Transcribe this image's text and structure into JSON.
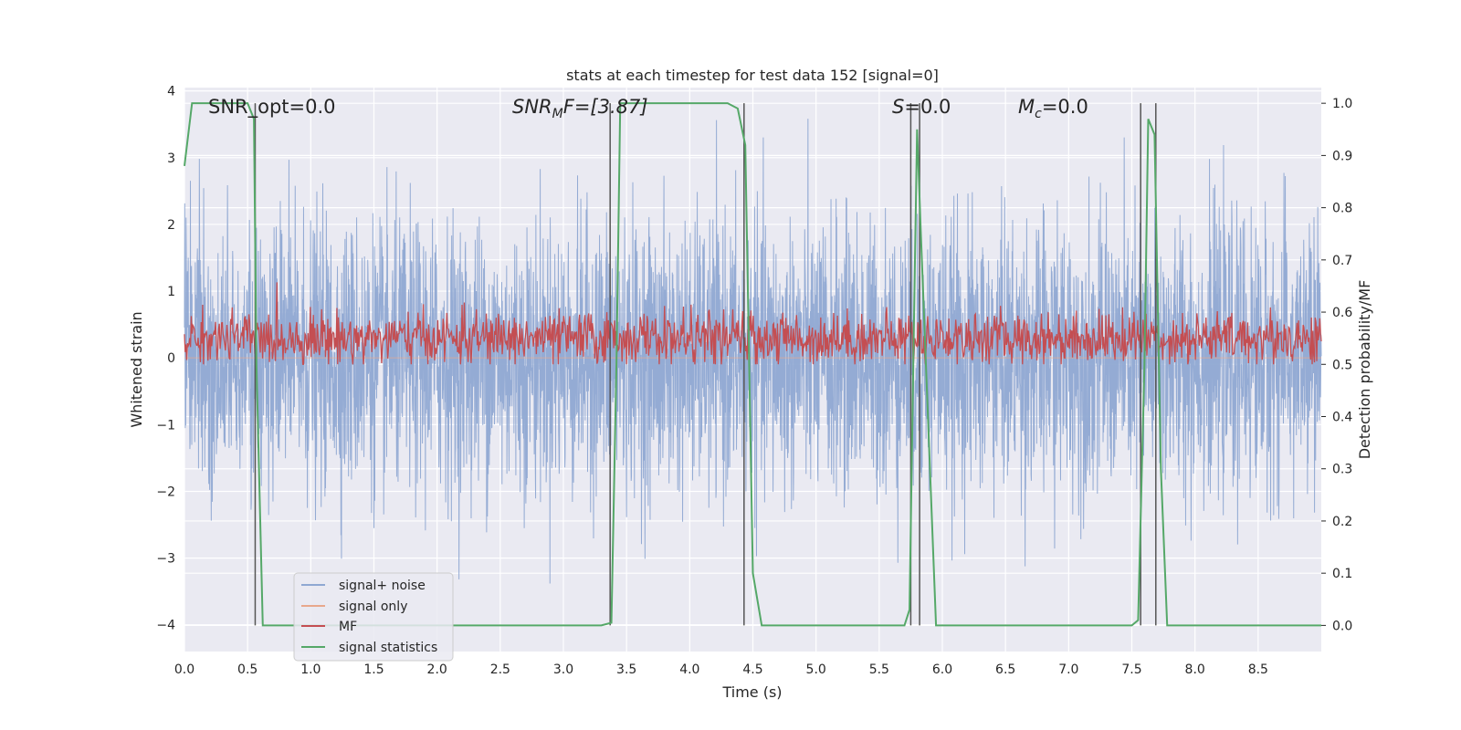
{
  "chart_data": {
    "type": "line",
    "title": "stats at each timestep for test data 152 [signal=0]",
    "xlabel": "Time (s)",
    "ylabel": "Whitened strain",
    "ylabel_right": "Detection probability/MF",
    "xlim": [
      0.0,
      9.0
    ],
    "ylim": [
      -4.4,
      4.05
    ],
    "ylim_right": [
      -0.05,
      1.03
    ],
    "x_ticks": [
      "0.0",
      "0.5",
      "1.0",
      "1.5",
      "2.0",
      "2.5",
      "3.0",
      "3.5",
      "4.0",
      "4.5",
      "5.0",
      "5.5",
      "6.0",
      "6.5",
      "7.0",
      "7.5",
      "8.0",
      "8.5"
    ],
    "y_ticks": [
      "−4",
      "−3",
      "−2",
      "−1",
      "0",
      "1",
      "2",
      "3",
      "4"
    ],
    "y_ticks_right": [
      "0.0",
      "0.1",
      "0.2",
      "0.3",
      "0.4",
      "0.5",
      "0.6",
      "0.7",
      "0.8",
      "0.9",
      "1.0"
    ],
    "grid": true,
    "legend_placement": "lower-left",
    "annotations": {
      "snr_opt": "SNR_opt=0.0",
      "snr_mf_main": "SNR",
      "snr_mf_sub": "M",
      "snr_mf_rest": "F=[3.87]",
      "s_main": "S",
      "s_rest": "=0.0",
      "mc_main": "M",
      "mc_sub": "c",
      "mc_rest": "=0.0"
    },
    "series": [
      {
        "name": "signal+ noise",
        "color": "#8fa8d2",
        "kind": "noise",
        "sigma": 1.0,
        "range": [
          -3.5,
          3.6
        ]
      },
      {
        "name": "signal only",
        "color": "#e8a88c",
        "kind": "flat",
        "value": 0.0
      },
      {
        "name": "MF",
        "color": "#c44e52",
        "kind": "mf",
        "mean": 0.55,
        "range": [
          0.5,
          0.68
        ]
      },
      {
        "name": "signal statistics",
        "color": "#55a868",
        "kind": "detection",
        "x": [
          0.0,
          0.06,
          0.1,
          0.45,
          0.5,
          0.55,
          0.57,
          0.62,
          0.65,
          3.3,
          3.38,
          3.42,
          3.45,
          4.3,
          4.38,
          4.44,
          4.5,
          4.57,
          5.7,
          5.74,
          5.77,
          5.8,
          5.83,
          5.95,
          5.98,
          7.5,
          7.55,
          7.6,
          7.63,
          7.68,
          7.73,
          7.78,
          9.0
        ],
        "values": [
          0.88,
          1.0,
          1.0,
          1.0,
          1.0,
          0.97,
          0.5,
          0.0,
          0.0,
          0.0,
          0.005,
          0.5,
          1.0,
          1.0,
          0.99,
          0.92,
          0.1,
          0.0,
          0.0,
          0.03,
          0.5,
          0.95,
          0.75,
          0.0,
          0.0,
          0.0,
          0.01,
          0.5,
          0.97,
          0.94,
          0.3,
          0.0,
          0.0
        ]
      }
    ],
    "vertical_markers": [
      0.56,
      3.37,
      4.43,
      5.75,
      5.82,
      7.57,
      7.69
    ]
  },
  "legend": {
    "items": [
      "signal+ noise",
      "signal only",
      "MF",
      "signal statistics"
    ]
  }
}
